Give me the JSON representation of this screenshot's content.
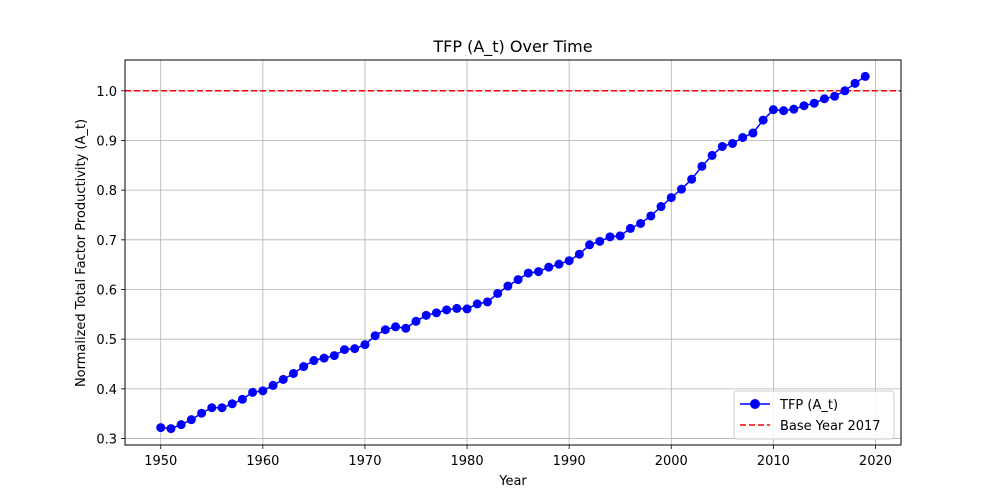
{
  "chart_data": {
    "type": "line",
    "title": "TFP (A_t) Over Time",
    "xlabel": "Year",
    "ylabel": "Normalized Total Factor Productivity (A_t)",
    "xlim": [
      1946.5,
      2022.5
    ],
    "ylim": [
      0.287,
      1.062
    ],
    "x_ticks": [
      1950,
      1960,
      1970,
      1980,
      1990,
      2000,
      2010,
      2020
    ],
    "y_ticks": [
      0.3,
      0.4,
      0.5,
      0.6,
      0.7,
      0.8,
      0.9,
      1.0
    ],
    "y_tick_labels": [
      "0.3",
      "0.4",
      "0.5",
      "0.6",
      "0.7",
      "0.8",
      "0.9",
      "1.0"
    ],
    "grid": true,
    "legend_position": "lower-right",
    "series": [
      {
        "name": "TFP (A_t)",
        "color": "#0000ff",
        "marker": "circle",
        "x": [
          1950,
          1951,
          1952,
          1953,
          1954,
          1955,
          1956,
          1957,
          1958,
          1959,
          1960,
          1961,
          1962,
          1963,
          1964,
          1965,
          1966,
          1967,
          1968,
          1969,
          1970,
          1971,
          1972,
          1973,
          1974,
          1975,
          1976,
          1977,
          1978,
          1979,
          1980,
          1981,
          1982,
          1983,
          1984,
          1985,
          1986,
          1987,
          1988,
          1989,
          1990,
          1991,
          1992,
          1993,
          1994,
          1995,
          1996,
          1997,
          1998,
          1999,
          2000,
          2001,
          2002,
          2003,
          2004,
          2005,
          2006,
          2007,
          2008,
          2009,
          2010,
          2011,
          2012,
          2013,
          2014,
          2015,
          2016,
          2017,
          2018,
          2019
        ],
        "values": [
          0.322,
          0.32,
          0.328,
          0.338,
          0.351,
          0.362,
          0.362,
          0.37,
          0.379,
          0.393,
          0.396,
          0.407,
          0.419,
          0.431,
          0.445,
          0.457,
          0.462,
          0.467,
          0.479,
          0.481,
          0.489,
          0.507,
          0.519,
          0.525,
          0.522,
          0.536,
          0.548,
          0.553,
          0.559,
          0.562,
          0.561,
          0.571,
          0.575,
          0.592,
          0.607,
          0.62,
          0.633,
          0.636,
          0.645,
          0.651,
          0.658,
          0.671,
          0.69,
          0.697,
          0.706,
          0.708,
          0.723,
          0.733,
          0.748,
          0.767,
          0.785,
          0.802,
          0.822,
          0.848,
          0.87,
          0.888,
          0.894,
          0.906,
          0.915,
          0.941,
          0.962,
          0.96,
          0.963,
          0.97,
          0.975,
          0.984,
          0.989,
          1.0,
          1.015,
          1.029
        ]
      }
    ],
    "reference_lines": [
      {
        "name": "Base Year 2017",
        "y": 1.0,
        "color": "#ff0000",
        "style": "dashed"
      }
    ]
  }
}
